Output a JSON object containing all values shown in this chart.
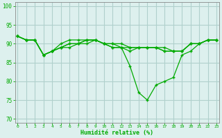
{
  "title": "",
  "xlabel": "Humidité relative (%)",
  "ylabel": "",
  "bg_color": "#ddf0ee",
  "grid_color": "#b0d0cc",
  "line_color": "#00aa00",
  "x_ticks": [
    0,
    1,
    2,
    3,
    4,
    5,
    6,
    7,
    8,
    9,
    10,
    11,
    12,
    13,
    14,
    15,
    16,
    17,
    18,
    19,
    20,
    21,
    22,
    23
  ],
  "y_ticks": [
    70,
    75,
    80,
    85,
    90,
    95,
    100
  ],
  "ylim": [
    69,
    101
  ],
  "xlim": [
    -0.3,
    23.3
  ],
  "series": [
    [
      92,
      91,
      91,
      87,
      88,
      89,
      90,
      90,
      91,
      91,
      90,
      89,
      89,
      84,
      77,
      75,
      79,
      80,
      81,
      87,
      88,
      90,
      91,
      91
    ],
    [
      92,
      91,
      91,
      87,
      88,
      90,
      91,
      91,
      91,
      91,
      90,
      90,
      90,
      89,
      89,
      89,
      89,
      89,
      88,
      88,
      90,
      90,
      91,
      91
    ],
    [
      92,
      91,
      91,
      87,
      88,
      89,
      90,
      90,
      91,
      91,
      90,
      89,
      89,
      89,
      89,
      89,
      89,
      88,
      88,
      88,
      90,
      90,
      91,
      91
    ],
    [
      92,
      91,
      91,
      87,
      88,
      89,
      89,
      90,
      90,
      91,
      90,
      90,
      89,
      88,
      89,
      89,
      89,
      88,
      88,
      88,
      90,
      90,
      91,
      91
    ]
  ]
}
